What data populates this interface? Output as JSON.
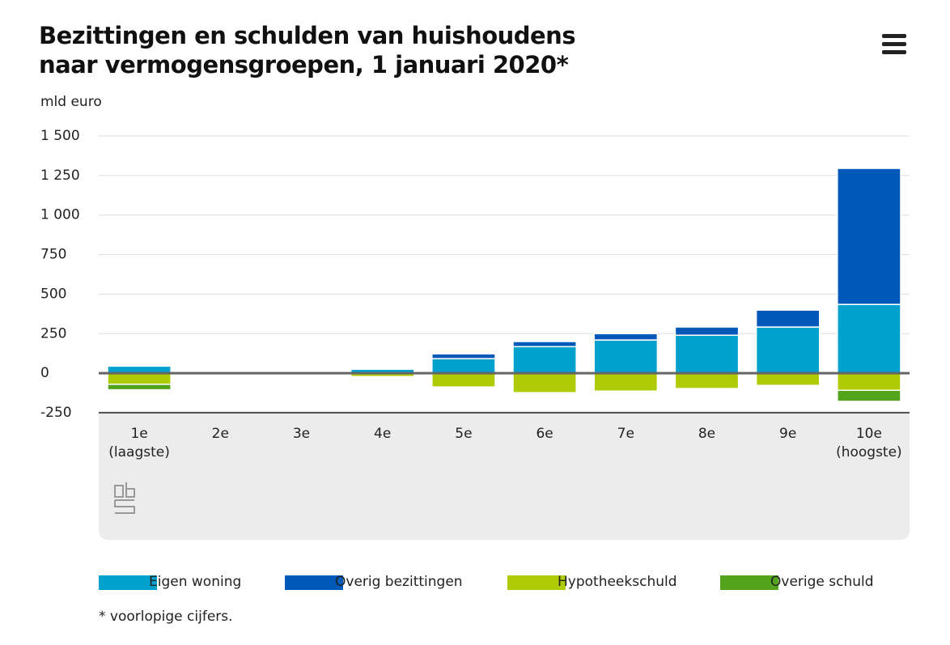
{
  "chart_data": {
    "type": "bar",
    "stacked": true,
    "title": "Bezittingen en schulden van huishoudens naar vermogensgroepen, 1 januari 2020*",
    "y_label": "mld euro",
    "footnote": "* voorlopige cijfers.",
    "categories": [
      "1e (laagste)",
      "2e",
      "3e",
      "4e",
      "5e",
      "6e",
      "7e",
      "8e",
      "9e",
      "10e (hoogste)"
    ],
    "series": [
      {
        "name": "Eigen woning",
        "color": "#00a1cd",
        "values": [
          45,
          0,
          0,
          25,
          92,
          168,
          210,
          240,
          292,
          435
        ]
      },
      {
        "name": "Overig bezittingen",
        "color": "#0058b8",
        "values": [
          2,
          0,
          0,
          3,
          30,
          32,
          40,
          52,
          107,
          860
        ]
      },
      {
        "name": "Hypotheekschuld",
        "color": "#afcb05",
        "values": [
          -70,
          0,
          0,
          -22,
          -87,
          -123,
          -113,
          -97,
          -77,
          -108
        ]
      },
      {
        "name": "Overige schuld",
        "color": "#53a31d",
        "values": [
          -35,
          0,
          0,
          -3,
          0,
          0,
          0,
          0,
          0,
          -70
        ]
      }
    ],
    "ylim": [
      -250,
      1500
    ],
    "yticks": [
      -250,
      0,
      250,
      500,
      750,
      {
        "value": 1000,
        "label": "1 000"
      },
      {
        "value": 1250,
        "label": "1 250"
      },
      {
        "value": 1500,
        "label": "1 500"
      }
    ],
    "grid": true
  }
}
